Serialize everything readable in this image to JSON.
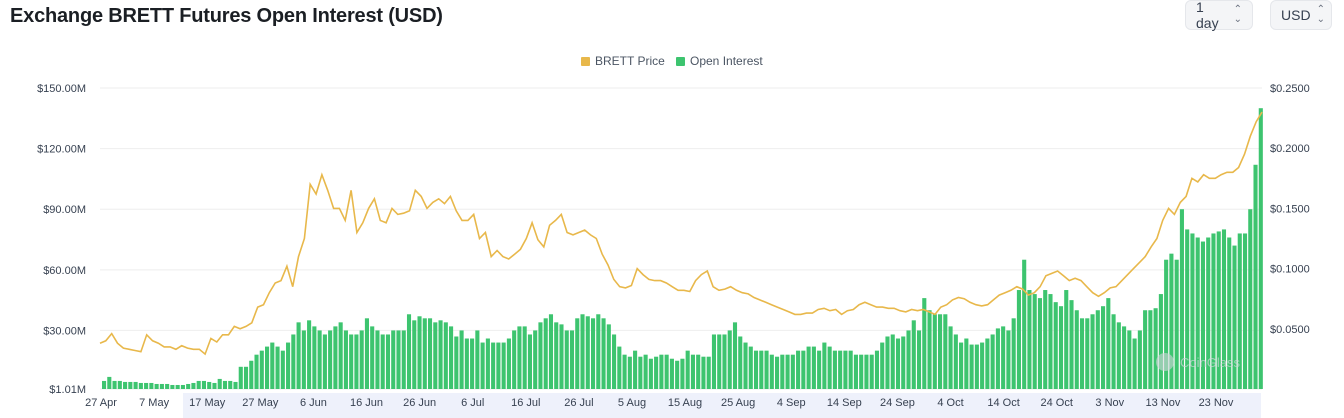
{
  "title": "Exchange BRETT Futures Open Interest (USD)",
  "controls": {
    "interval": "1 day",
    "currency": "USD"
  },
  "colors": {
    "price": "#e8b84b",
    "open_interest": "#3dc46f",
    "grid": "#eeeeee"
  },
  "chart_data": {
    "type": "bar+line",
    "legend": [
      "BRETT Price",
      "Open Interest"
    ],
    "legend_position": "top-center",
    "grid": true,
    "x_ticks": [
      "27 Apr",
      "7 May",
      "17 May",
      "27 May",
      "6 Jun",
      "16 Jun",
      "26 Jun",
      "6 Jul",
      "16 Jul",
      "26 Jul",
      "5 Aug",
      "15 Aug",
      "25 Aug",
      "4 Sep",
      "14 Sep",
      "24 Sep",
      "4 Oct",
      "14 Oct",
      "24 Oct",
      "3 Nov",
      "13 Nov",
      "23 Nov"
    ],
    "y_left_ticks": [
      "$1.01M",
      "$30.00M",
      "$60.00M",
      "$90.00M",
      "$120.00M",
      "$150.00M"
    ],
    "y_left_range": [
      1.01,
      150
    ],
    "y_left_unit": "M USD",
    "y_right_ticks": [
      "$0.0500",
      "$0.1000",
      "$0.1500",
      "$0.2000",
      "$0.2500"
    ],
    "y_right_range": [
      0.0,
      0.25
    ],
    "series": [
      {
        "name": "Open Interest",
        "axis": "left",
        "type": "bar",
        "values": [
          5,
          7,
          5,
          5,
          4.5,
          4.5,
          4.5,
          4,
          4,
          4,
          3.5,
          3.5,
          3.5,
          3,
          3,
          3,
          3.5,
          4,
          5,
          5,
          4.5,
          4,
          6,
          5,
          5,
          4.5,
          12,
          12,
          15,
          18,
          20,
          22,
          24,
          22,
          20,
          24,
          28,
          34,
          30,
          35,
          32,
          30,
          28,
          30,
          32,
          34,
          30,
          28,
          28,
          30,
          36,
          32,
          30,
          28,
          28,
          30,
          30,
          30,
          38,
          35,
          37,
          36,
          36,
          34,
          35,
          34,
          32,
          27,
          30,
          26,
          26,
          30,
          24,
          26,
          24,
          24,
          24,
          26,
          30,
          32,
          32,
          28,
          30,
          34,
          36,
          38,
          34,
          33,
          30,
          30,
          36,
          38,
          37,
          36,
          38,
          36,
          33,
          28,
          22,
          18,
          17,
          20,
          17,
          18,
          16,
          17,
          18,
          18,
          16,
          15,
          16,
          20,
          18,
          18,
          17,
          17,
          28,
          28,
          28,
          30,
          34,
          27,
          24,
          22,
          20,
          20,
          20,
          18,
          17,
          18,
          18,
          18,
          20,
          20,
          22,
          22,
          20,
          24,
          22,
          20,
          20,
          20,
          20,
          18,
          18,
          18,
          18,
          20,
          24,
          27,
          28,
          26,
          27,
          30,
          35,
          30,
          46,
          40,
          38,
          38,
          38,
          32,
          28,
          24,
          26,
          23,
          23,
          24,
          26,
          28,
          31,
          32,
          30,
          36,
          50,
          65,
          50,
          48,
          46,
          50,
          48,
          44,
          42,
          50,
          45,
          40,
          36,
          36,
          38,
          40,
          42,
          46,
          38,
          34,
          32,
          30,
          26,
          30,
          40,
          40,
          41,
          48,
          65,
          68,
          65,
          90,
          80,
          78,
          76,
          74,
          76,
          78,
          79,
          80,
          76,
          72,
          78,
          78,
          90,
          112,
          140
        ]
      },
      {
        "name": "BRETT Price",
        "axis": "right",
        "type": "line",
        "values": [
          0.038,
          0.04,
          0.046,
          0.038,
          0.034,
          0.033,
          0.032,
          0.031,
          0.045,
          0.04,
          0.038,
          0.035,
          0.035,
          0.033,
          0.036,
          0.034,
          0.033,
          0.033,
          0.029,
          0.042,
          0.039,
          0.045,
          0.045,
          0.052,
          0.05,
          0.052,
          0.055,
          0.068,
          0.07,
          0.08,
          0.088,
          0.09,
          0.102,
          0.085,
          0.11,
          0.125,
          0.17,
          0.162,
          0.178,
          0.165,
          0.15,
          0.15,
          0.14,
          0.165,
          0.13,
          0.138,
          0.15,
          0.158,
          0.14,
          0.138,
          0.15,
          0.145,
          0.146,
          0.148,
          0.165,
          0.16,
          0.15,
          0.155,
          0.158,
          0.154,
          0.16,
          0.148,
          0.14,
          0.14,
          0.145,
          0.125,
          0.13,
          0.11,
          0.115,
          0.11,
          0.108,
          0.112,
          0.116,
          0.125,
          0.138,
          0.124,
          0.118,
          0.136,
          0.14,
          0.145,
          0.13,
          0.128,
          0.13,
          0.132,
          0.128,
          0.125,
          0.112,
          0.103,
          0.091,
          0.085,
          0.084,
          0.086,
          0.1,
          0.095,
          0.091,
          0.09,
          0.09,
          0.088,
          0.085,
          0.082,
          0.082,
          0.081,
          0.09,
          0.095,
          0.098,
          0.085,
          0.082,
          0.083,
          0.085,
          0.082,
          0.08,
          0.079,
          0.076,
          0.074,
          0.072,
          0.07,
          0.068,
          0.066,
          0.064,
          0.062,
          0.062,
          0.063,
          0.063,
          0.066,
          0.067,
          0.065,
          0.066,
          0.062,
          0.065,
          0.066,
          0.07,
          0.072,
          0.07,
          0.068,
          0.068,
          0.067,
          0.067,
          0.065,
          0.064,
          0.066,
          0.065,
          0.066,
          0.064,
          0.062,
          0.068,
          0.07,
          0.074,
          0.076,
          0.075,
          0.072,
          0.07,
          0.069,
          0.07,
          0.074,
          0.078,
          0.08,
          0.082,
          0.085,
          0.083,
          0.078,
          0.08,
          0.085,
          0.094,
          0.096,
          0.098,
          0.094,
          0.09,
          0.092,
          0.09,
          0.085,
          0.08,
          0.077,
          0.08,
          0.084,
          0.085,
          0.09,
          0.095,
          0.1,
          0.105,
          0.11,
          0.118,
          0.125,
          0.14,
          0.15,
          0.145,
          0.155,
          0.16,
          0.175,
          0.172,
          0.178,
          0.175,
          0.175,
          0.178,
          0.18,
          0.18,
          0.184,
          0.195,
          0.21,
          0.222,
          0.23
        ]
      }
    ],
    "watermark": "CoinGlass"
  }
}
